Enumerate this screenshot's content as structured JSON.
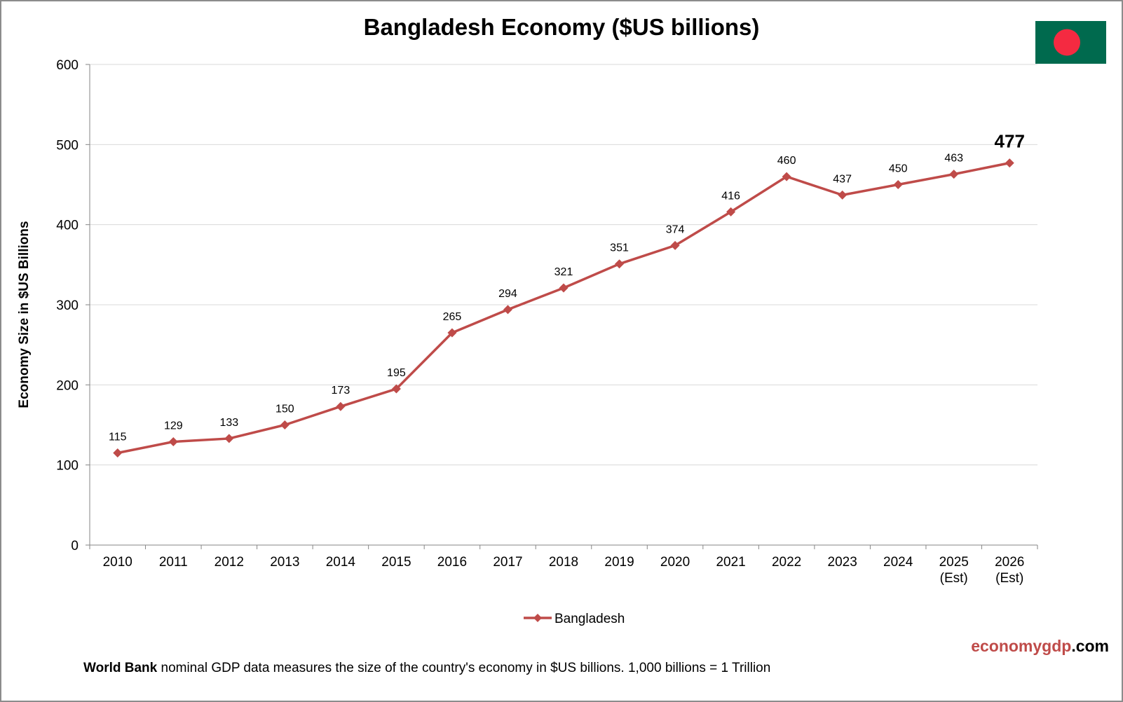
{
  "colors": {
    "series": "#bf4b49",
    "grid": "#d9d9d9",
    "flag_green": "#006a4e",
    "flag_red": "#f42a41"
  },
  "chart_data": {
    "type": "line",
    "title": "Bangladesh Economy ($US billions)",
    "ylabel": "Economy Size in $US Billions",
    "xlabel": "",
    "ylim": [
      0,
      600
    ],
    "yticks": [
      0,
      100,
      200,
      300,
      400,
      500,
      600
    ],
    "grid": true,
    "legend": "bottom-center",
    "categories": [
      [
        "2010"
      ],
      [
        "2011"
      ],
      [
        "2012"
      ],
      [
        "2013"
      ],
      [
        "2014"
      ],
      [
        "2015"
      ],
      [
        "2016"
      ],
      [
        "2017"
      ],
      [
        "2018"
      ],
      [
        "2019"
      ],
      [
        "2020"
      ],
      [
        "2021"
      ],
      [
        "2022"
      ],
      [
        "2023"
      ],
      [
        "2024"
      ],
      [
        "2025",
        "(Est)"
      ],
      [
        "2026",
        "(Est)"
      ]
    ],
    "series": [
      {
        "name": "Bangladesh",
        "values": [
          115,
          129,
          133,
          150,
          173,
          195,
          265,
          294,
          321,
          351,
          374,
          416,
          460,
          437,
          450,
          463,
          477
        ]
      }
    ]
  },
  "branding": {
    "part1": "economygdp",
    "part2": ".com"
  },
  "footnote": {
    "bold": "World Bank",
    "text": " nominal GDP data  measures the size of the country's economy in $US billions.  1,000 billions = 1 Trillion"
  }
}
